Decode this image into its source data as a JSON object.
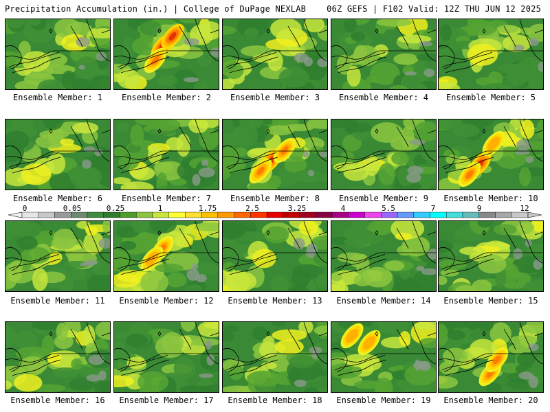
{
  "header": {
    "left": "Precipitation Accumulation (in.) | College of DuPage NEXLAB",
    "right": "06Z GEFS | F102 Valid: 12Z THU JUN 12 2025"
  },
  "members": [
    {
      "label": "Ensemble Member: 1"
    },
    {
      "label": "Ensemble Member: 2"
    },
    {
      "label": "Ensemble Member: 3"
    },
    {
      "label": "Ensemble Member: 4"
    },
    {
      "label": "Ensemble Member: 5"
    },
    {
      "label": "Ensemble Member: 6"
    },
    {
      "label": "Ensemble Member: 7"
    },
    {
      "label": "Ensemble Member: 8"
    },
    {
      "label": "Ensemble Member: 9"
    },
    {
      "label": "Ensemble Member: 10"
    },
    {
      "label": "Ensemble Member: 11"
    },
    {
      "label": "Ensemble Member: 12"
    },
    {
      "label": "Ensemble Member: 13"
    },
    {
      "label": "Ensemble Member: 14"
    },
    {
      "label": "Ensemble Member: 15"
    },
    {
      "label": "Ensemble Member: 16"
    },
    {
      "label": "Ensemble Member: 17"
    },
    {
      "label": "Ensemble Member: 18"
    },
    {
      "label": "Ensemble Member: 19"
    },
    {
      "label": "Ensemble Member: 20"
    }
  ],
  "colorbar": {
    "ticks": [
      "0",
      "0.05",
      "0.25",
      "1",
      "1.75",
      "2.5",
      "3.25",
      "4",
      "5.5",
      "7",
      "9",
      "12"
    ],
    "colors": [
      "#e6e6e6",
      "#c8c8c8",
      "#9a9a9a",
      "#6e8a6e",
      "#3f8a3f",
      "#2e7d2e",
      "#4f9e2a",
      "#8cc63f",
      "#c8e63c",
      "#ffff33",
      "#ffe033",
      "#ffc000",
      "#ff9900",
      "#ff6600",
      "#ff3300",
      "#e60000",
      "#c00000",
      "#a00020",
      "#880044",
      "#aa0088",
      "#cc00cc",
      "#ee44ee",
      "#9966ff",
      "#6699ff",
      "#33ccff",
      "#00ffff",
      "#44dddd",
      "#66bbbb",
      "#888888",
      "#a8a8a8",
      "#c8c8c8"
    ]
  }
}
